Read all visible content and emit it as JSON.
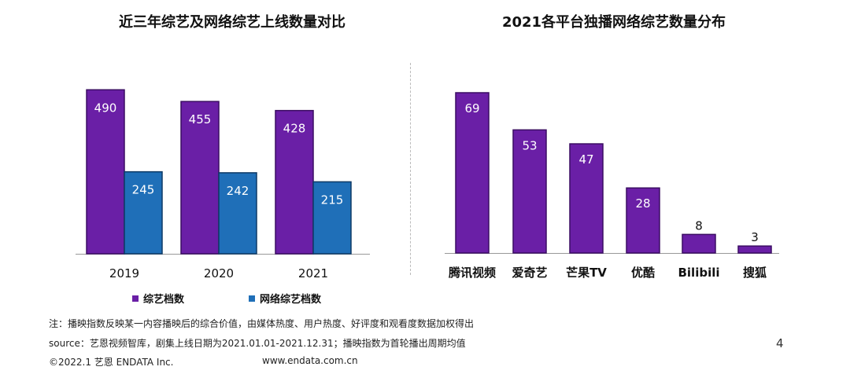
{
  "colors": {
    "purple": "#6a1fa6",
    "purple_dark": "#3b0d63",
    "blue": "#1f6fb8",
    "blue_dark": "#0e3a66"
  },
  "chart_data": [
    {
      "type": "bar",
      "title": "近三年综艺及网络综艺上线数量对比",
      "categories": [
        "2019",
        "2020",
        "2021"
      ],
      "series": [
        {
          "name": "综艺档数",
          "values": [
            490,
            455,
            428
          ]
        },
        {
          "name": "网络综艺档数",
          "values": [
            245,
            242,
            215
          ]
        }
      ],
      "ylim": [
        0,
        500
      ],
      "legend": "bottom",
      "grid": false
    },
    {
      "type": "bar",
      "title": "2021各平台独播网络综艺数量分布",
      "categories": [
        "腾讯视频",
        "爱奇艺",
        "芒果TV",
        "优酷",
        "Bilibili",
        "搜狐"
      ],
      "values": [
        69,
        53,
        47,
        28,
        8,
        3
      ],
      "ylim": [
        0,
        75
      ],
      "grid": false
    }
  ],
  "footer": {
    "note": "注：播映指数反映某一内容播映后的综合价值，由媒体热度、用户热度、好评度和观看度数据加权得出",
    "source": "source：艺恩视频智库，剧集上线日期为2021.01.01-2021.12.31；播映指数为首轮播出周期均值",
    "copyright": "©2022.1 艺恩 ENDATA Inc.",
    "website": "www.endata.com.cn",
    "page_number": "4"
  }
}
